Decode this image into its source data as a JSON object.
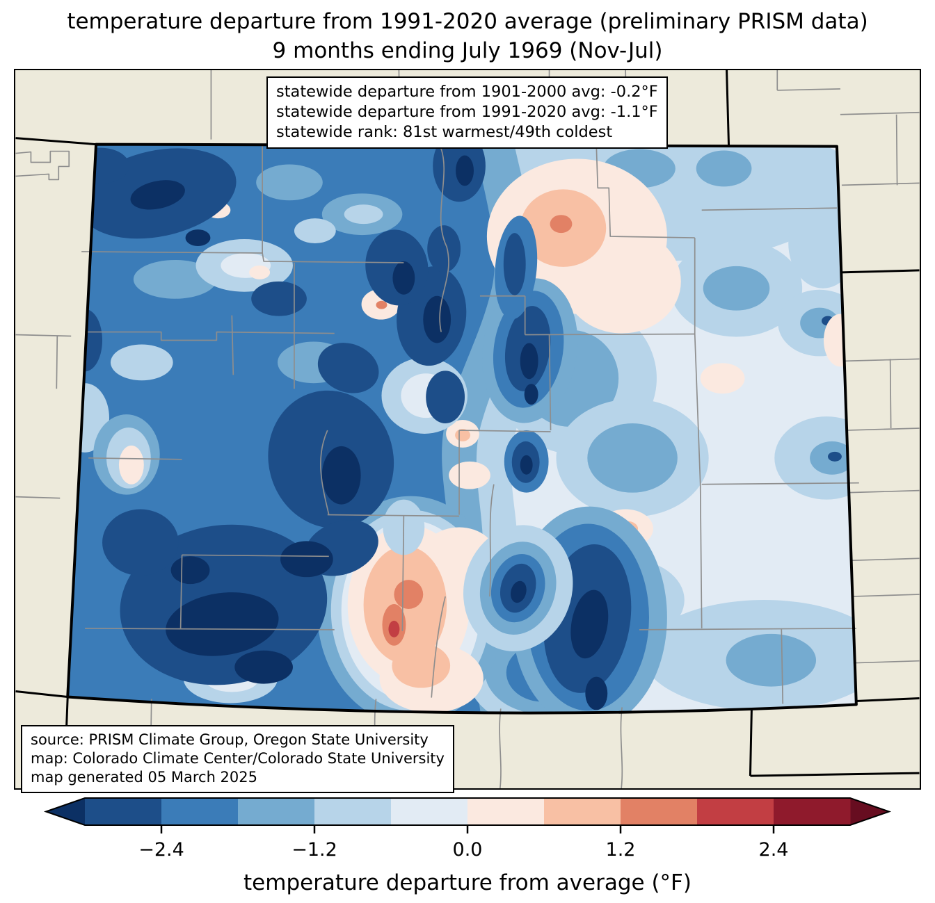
{
  "figure": {
    "title_line1": "temperature departure from 1991-2020 average (preliminary PRISM data)",
    "title_line2": "9 months ending July 1969 (Nov-Jul)"
  },
  "stats_box": {
    "line1": "statewide departure from 1901-2000 avg: -0.2°F",
    "line2": "statewide departure from 1991-2020 avg: -1.1°F",
    "line3": "statewide rank: 81st warmest/49th coldest"
  },
  "source_box": {
    "line1": "source: PRISM Climate Group, Oregon State University",
    "line2": "map: Colorado Climate Center/Colorado State University",
    "line3": "map generated 05 March 2025"
  },
  "colorbar": {
    "label": "temperature departure from average (°F)",
    "tick_labels": [
      "−2.4",
      "−1.2",
      "0.0",
      "1.2",
      "2.4"
    ],
    "boundaries": [
      -3.0,
      -2.4,
      -1.8,
      -1.2,
      -0.6,
      0.0,
      0.6,
      1.2,
      1.8,
      2.4,
      3.0
    ],
    "segment_colors": [
      "#1d4e89",
      "#3b7cb8",
      "#75abd0",
      "#b7d4e9",
      "#e2ebf4",
      "#fbe9e0",
      "#f8c0a4",
      "#e28165",
      "#c23e43",
      "#8f1a2c"
    ],
    "under_arrow_color": "#0c3064",
    "over_arrow_color": "#670d20"
  },
  "map": {
    "region": "Colorado",
    "background_color": "#edeadb",
    "county_line_color": "#8e8e8e",
    "state_line_color": "#000000"
  }
}
